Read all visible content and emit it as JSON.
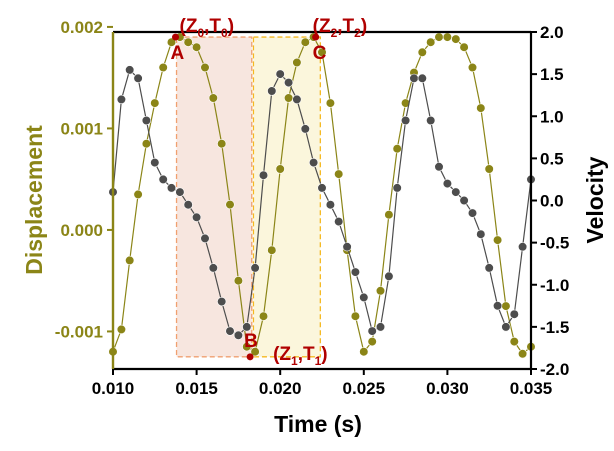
{
  "chart_data": {
    "type": "scatter",
    "xlabel": "Time (s)",
    "ylabel": "Displacement",
    "y2label": "Velocity",
    "xlim": [
      0.01,
      0.035
    ],
    "ylim": [
      -0.00137,
      0.00195
    ],
    "y2lim": [
      -2.0,
      2.0
    ],
    "xticks": [
      0.01,
      0.015,
      0.02,
      0.025,
      0.03,
      0.035
    ],
    "xtick_labels": [
      "0.010",
      "0.015",
      "0.020",
      "0.025",
      "0.030",
      "0.035"
    ],
    "yticks": [
      -0.001,
      0.0,
      0.001,
      0.002
    ],
    "ytick_labels": [
      "-0.001",
      "0.000",
      "0.001",
      "0.002"
    ],
    "y2ticks": [
      -2.0,
      -1.5,
      -1.0,
      -0.5,
      0.0,
      0.5,
      1.0,
      1.5,
      2.0
    ],
    "y2tick_labels": [
      "-2.0",
      "-1.5",
      "-1.0",
      "-0.5",
      "0.0",
      "0.5",
      "1.0",
      "1.5",
      "2.0"
    ],
    "colors": {
      "displacement": "#8b8517",
      "velocity": "#4d4d4d",
      "annotation": "#b00000",
      "box1_fill": "#f7e6df",
      "box1_stroke": "#f0a070",
      "box2_fill": "#fbf6dc",
      "box2_stroke": "#f5b820"
    },
    "series": [
      {
        "name": "Displacement",
        "axis": "left",
        "x": [
          0.01,
          0.0105,
          0.011,
          0.0115,
          0.012,
          0.0125,
          0.013,
          0.0135,
          0.014,
          0.0145,
          0.015,
          0.0155,
          0.016,
          0.0165,
          0.017,
          0.0175,
          0.018,
          0.0185,
          0.019,
          0.0195,
          0.02,
          0.0205,
          0.021,
          0.0215,
          0.022,
          0.0225,
          0.023,
          0.0235,
          0.024,
          0.0245,
          0.025,
          0.0255,
          0.026,
          0.0265,
          0.027,
          0.0275,
          0.028,
          0.0285,
          0.029,
          0.0295,
          0.03,
          0.0305,
          0.031,
          0.0315,
          0.032,
          0.0325,
          0.033,
          0.0335,
          0.034,
          0.0345,
          0.035
        ],
        "y": [
          -0.0012,
          -0.00098,
          -0.0003,
          0.00035,
          0.00085,
          0.00125,
          0.0016,
          0.00185,
          0.0019,
          0.00185,
          0.0018,
          0.0016,
          0.0013,
          0.00085,
          0.00025,
          -0.0005,
          -0.00115,
          -0.0012,
          -0.00085,
          -0.0002,
          0.0006,
          0.0013,
          0.00165,
          0.00185,
          0.0019,
          0.00175,
          0.00125,
          0.00055,
          -0.0002,
          -0.00085,
          -0.0012,
          -0.0011,
          -0.0006,
          0.00015,
          0.0008,
          0.00125,
          0.00155,
          0.00175,
          0.00185,
          0.0019,
          0.0019,
          0.00188,
          0.0018,
          0.0016,
          0.0012,
          0.0006,
          -0.0001,
          -0.00075,
          -0.0011,
          -0.00122,
          -0.00115
        ]
      },
      {
        "name": "Velocity",
        "axis": "right",
        "x": [
          0.01,
          0.0105,
          0.011,
          0.0115,
          0.012,
          0.0125,
          0.013,
          0.0135,
          0.014,
          0.0145,
          0.015,
          0.0155,
          0.016,
          0.0165,
          0.017,
          0.0175,
          0.018,
          0.0185,
          0.019,
          0.0195,
          0.02,
          0.0205,
          0.021,
          0.0215,
          0.022,
          0.0225,
          0.023,
          0.0235,
          0.024,
          0.0245,
          0.025,
          0.0255,
          0.026,
          0.0265,
          0.027,
          0.0275,
          0.028,
          0.0285,
          0.029,
          0.0295,
          0.03,
          0.0305,
          0.031,
          0.0315,
          0.032,
          0.0325,
          0.033,
          0.0335,
          0.034,
          0.0345,
          0.035
        ],
        "y": [
          0.1,
          1.2,
          1.55,
          1.45,
          0.95,
          0.45,
          0.25,
          0.15,
          0.1,
          -0.05,
          -0.2,
          -0.45,
          -0.8,
          -1.2,
          -1.55,
          -1.6,
          -1.5,
          -0.8,
          0.3,
          1.3,
          1.5,
          1.4,
          1.2,
          0.85,
          0.45,
          0.15,
          -0.05,
          -0.25,
          -0.55,
          -0.85,
          -1.15,
          -1.55,
          -1.5,
          -0.9,
          0.15,
          0.95,
          1.45,
          1.45,
          0.95,
          0.4,
          0.2,
          0.1,
          0.0,
          -0.15,
          -0.4,
          -0.8,
          -1.25,
          -1.5,
          -1.35,
          -0.55,
          0.25
        ]
      }
    ],
    "annotations": [
      {
        "label": "A",
        "coord": "(Z",
        "sub1": "0",
        "mid": ",T",
        "sub2": "0",
        "end": ")",
        "x": 0.0138,
        "y": 0.0019
      },
      {
        "label": "B",
        "coord": "(Z",
        "sub1": "1",
        "mid": ",T",
        "sub2": "1",
        "end": ")",
        "x": 0.0182,
        "y": -0.00125
      },
      {
        "label": "C",
        "coord": "(Z",
        "sub1": "2",
        "mid": ",T",
        "sub2": "2",
        "end": ")",
        "x": 0.0223,
        "y": 0.0019
      }
    ],
    "boxes": [
      {
        "x0": 0.0138,
        "x1": 0.0183,
        "y0": -0.00125,
        "y1": 0.0019,
        "style": "box1"
      },
      {
        "x0": 0.0184,
        "x1": 0.0224,
        "y0": -0.00125,
        "y1": 0.0019,
        "style": "box2"
      }
    ],
    "grid": false,
    "legend": "none"
  }
}
